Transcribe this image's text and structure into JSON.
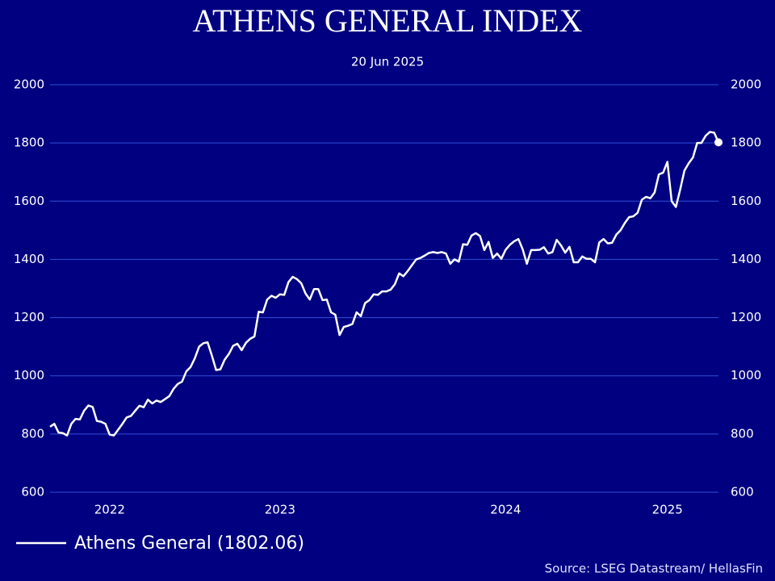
{
  "chart_data": {
    "type": "line",
    "title": "ATHENS GENERAL INDEX",
    "subtitle": "20 Jun 2025",
    "source": "Source: LSEG Datastream/ HellasFin",
    "categories": [
      null,
      null,
      null,
      null,
      null,
      null,
      null,
      null,
      null,
      null,
      null,
      null,
      null,
      null,
      "2022",
      null,
      null,
      null,
      null,
      null,
      null,
      null,
      null,
      null,
      null,
      null,
      null,
      null,
      null,
      null,
      null,
      null,
      null,
      null,
      null,
      null,
      null,
      null,
      null,
      null,
      null,
      null,
      null,
      null,
      null,
      null,
      null,
      null,
      null,
      null,
      null,
      null,
      null,
      null,
      "2023",
      null,
      null,
      null,
      null,
      null,
      null,
      null,
      null,
      null,
      null,
      null,
      null,
      null,
      null,
      null,
      null,
      null,
      null,
      null,
      null,
      null,
      null,
      null,
      null,
      null,
      null,
      null,
      null,
      null,
      null,
      null,
      null,
      null,
      null,
      null,
      null,
      null,
      null,
      null,
      null,
      null,
      null,
      null,
      null,
      null,
      null,
      null,
      null,
      null,
      null,
      null,
      null,
      "2024",
      null,
      null,
      null,
      null,
      null,
      null,
      null,
      null,
      null,
      null,
      null,
      null,
      null,
      null,
      null,
      null,
      null,
      null,
      null,
      null,
      null,
      null,
      null,
      null,
      null,
      null,
      null,
      null,
      null,
      null,
      null,
      null,
      null,
      null,
      null,
      null,
      null,
      "2025",
      null,
      null,
      null,
      null,
      null,
      null,
      null,
      null,
      null,
      null,
      null,
      null
    ],
    "series": [
      {
        "name": "Athens General (1802.06)",
        "color": "#ffffff",
        "values": [
          825,
          835,
          805,
          803,
          795,
          835,
          852,
          850,
          880,
          898,
          893,
          845,
          842,
          835,
          798,
          795,
          815,
          835,
          857,
          862,
          880,
          897,
          892,
          918,
          905,
          915,
          910,
          920,
          930,
          955,
          972,
          980,
          1015,
          1030,
          1060,
          1100,
          1112,
          1115,
          1070,
          1020,
          1022,
          1055,
          1075,
          1103,
          1110,
          1088,
          1113,
          1127,
          1135,
          1220,
          1218,
          1262,
          1275,
          1268,
          1280,
          1278,
          1322,
          1340,
          1332,
          1318,
          1283,
          1262,
          1298,
          1298,
          1260,
          1262,
          1218,
          1210,
          1140,
          1168,
          1172,
          1178,
          1218,
          1205,
          1250,
          1260,
          1280,
          1278,
          1290,
          1290,
          1296,
          1315,
          1352,
          1342,
          1360,
          1380,
          1400,
          1405,
          1413,
          1422,
          1425,
          1422,
          1425,
          1420,
          1385,
          1400,
          1392,
          1452,
          1450,
          1482,
          1490,
          1480,
          1432,
          1460,
          1405,
          1420,
          1402,
          1433,
          1450,
          1462,
          1470,
          1435,
          1385,
          1432,
          1432,
          1433,
          1442,
          1420,
          1425,
          1467,
          1448,
          1423,
          1443,
          1390,
          1390,
          1410,
          1402,
          1402,
          1390,
          1458,
          1470,
          1455,
          1457,
          1485,
          1500,
          1525,
          1545,
          1548,
          1560,
          1605,
          1615,
          1610,
          1630,
          1692,
          1698,
          1735,
          1600,
          1580,
          1640,
          1705,
          1730,
          1750,
          1800,
          1800,
          1825,
          1838,
          1835,
          1802.06
        ]
      }
    ],
    "ylim": [
      600,
      2000
    ],
    "yticks": [
      600,
      800,
      1000,
      1200,
      1400,
      1600,
      1800,
      2000
    ],
    "y2lim": [
      600,
      2000
    ],
    "y2ticks": [
      600,
      800,
      1000,
      1200,
      1400,
      1600,
      1800,
      2000
    ],
    "grid": true,
    "legend": "bottom-left"
  }
}
